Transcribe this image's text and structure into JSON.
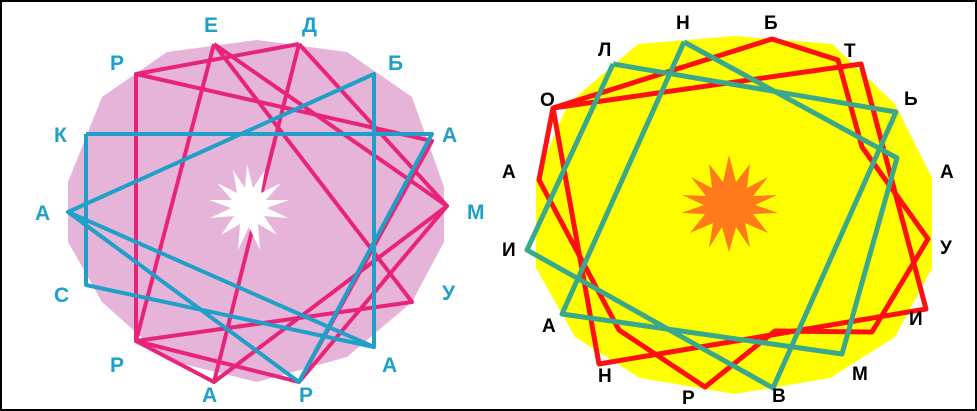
{
  "left_figure": {
    "background_color": "#e6b4d8",
    "label_color": "#1fa0c8",
    "line_color_pink": "#e8247a",
    "line_color_blue": "#1fa0c8",
    "sun_color": "#ffffff",
    "labels": [
      "Е",
      "Д",
      "Б",
      "А",
      "М",
      "У",
      "А",
      "Р",
      "А",
      "Р",
      "С",
      "А",
      "К",
      "Р"
    ]
  },
  "right_figure": {
    "background_color": "#ffff00",
    "label_color": "#000000",
    "line_color_red": "#ff1010",
    "line_color_green": "#3aa88a",
    "sun_color": "#ff7a1a",
    "labels": [
      "Н",
      "Б",
      "Т",
      "Ь",
      "А",
      "У",
      "И",
      "М",
      "В",
      "Р",
      "Н",
      "А",
      "И",
      "А",
      "О",
      "Л"
    ]
  }
}
